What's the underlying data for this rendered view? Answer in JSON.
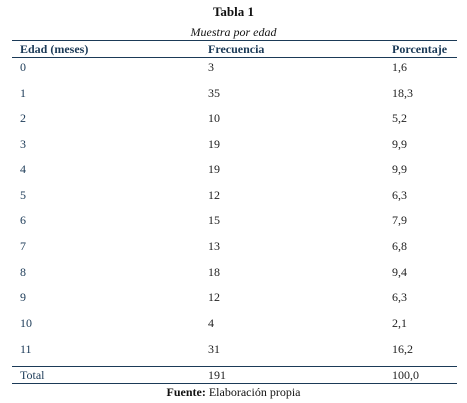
{
  "table": {
    "title": "Tabla 1",
    "subtitle": "Muestra por edad",
    "headers": [
      "Edad (meses)",
      "Frecuencia",
      "Porcentaje"
    ],
    "rows": [
      [
        "0",
        "3",
        "1,6"
      ],
      [
        "1",
        "35",
        "18,3"
      ],
      [
        "2",
        "10",
        "5,2"
      ],
      [
        "3",
        "19",
        "9,9"
      ],
      [
        "4",
        "19",
        "9,9"
      ],
      [
        "5",
        "12",
        "6,3"
      ],
      [
        "6",
        "15",
        "7,9"
      ],
      [
        "7",
        "13",
        "6,8"
      ],
      [
        "8",
        "18",
        "9,4"
      ],
      [
        "9",
        "12",
        "6,3"
      ],
      [
        "10",
        "4",
        "2,1"
      ],
      [
        "11",
        "31",
        "16,2"
      ]
    ],
    "total": [
      "Total",
      "191",
      "100,0"
    ],
    "footer_label": "Fuente:",
    "footer_text": " Elaboración propia"
  }
}
